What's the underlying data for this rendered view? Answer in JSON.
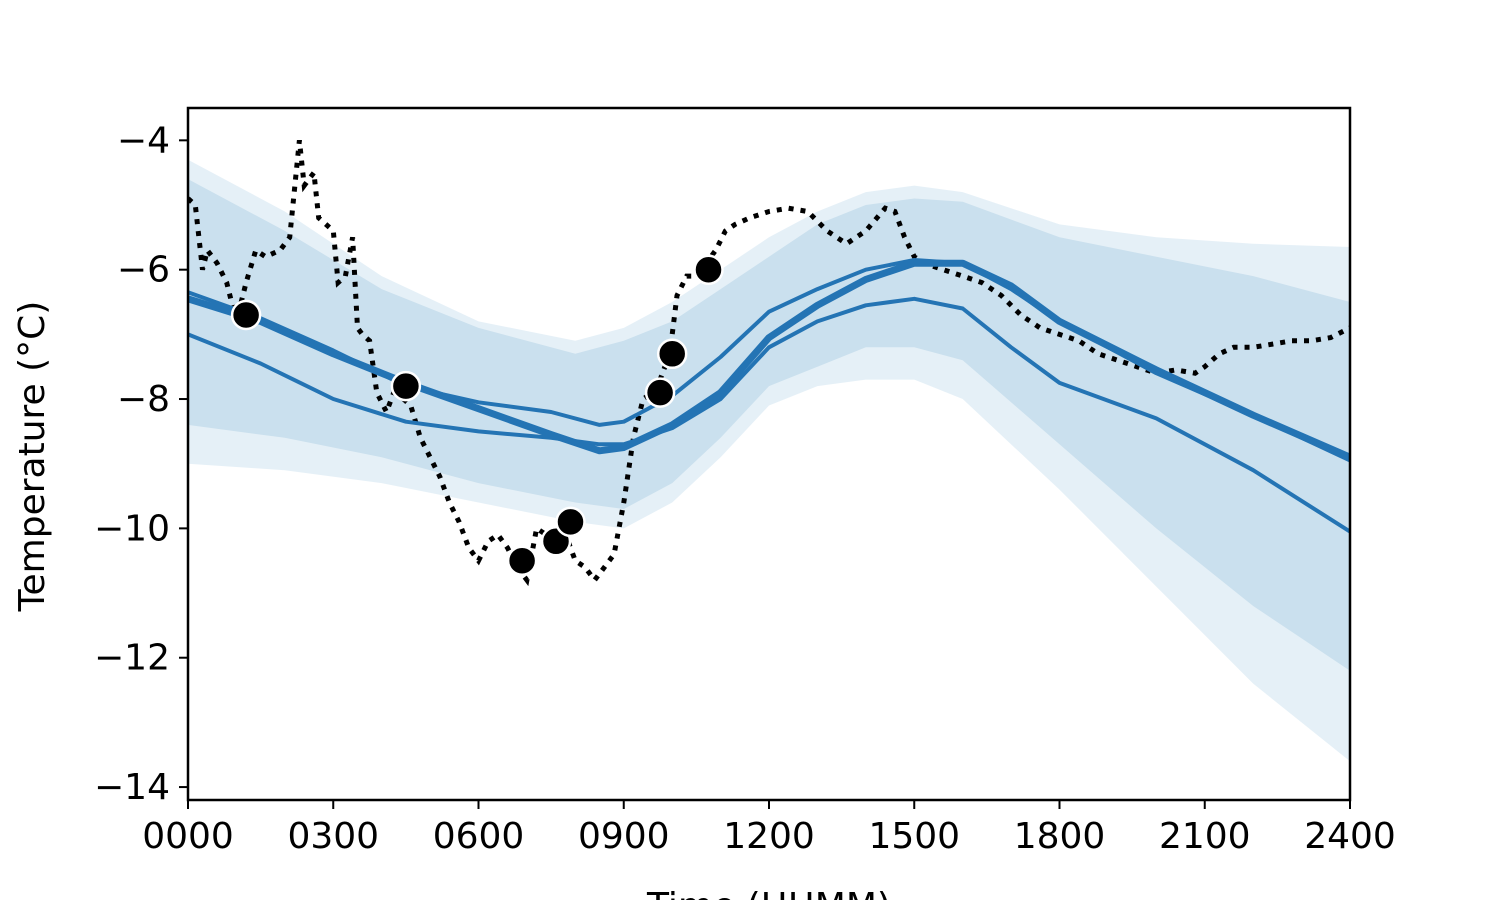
{
  "chart_data": {
    "type": "line",
    "xlabel": "Time (HHMM)",
    "ylabel": "Temperature (°C)",
    "xlim": [
      0,
      24
    ],
    "ylim": [
      -14.2,
      -3.5
    ],
    "x_ticks": [
      0,
      3,
      6,
      9,
      12,
      15,
      18,
      21,
      24
    ],
    "x_tick_labels": [
      "0000",
      "0300",
      "0600",
      "0900",
      "1200",
      "1500",
      "1800",
      "2100",
      "2400"
    ],
    "y_ticks": [
      -4,
      -6,
      -8,
      -10,
      -12,
      -14
    ],
    "y_tick_labels": [
      "−4",
      "−6",
      "−8",
      "−10",
      "−12",
      "−14"
    ],
    "grid": false,
    "legend": "none",
    "colors": {
      "line": "#2474b4",
      "band": "#a9cde3",
      "observed": "#000000"
    },
    "bands": [
      {
        "x": [
          0,
          2,
          4,
          6,
          8,
          9,
          10,
          11,
          12,
          13,
          14,
          15,
          16,
          18,
          20,
          22,
          24
        ],
        "upper": [
          -4.3,
          -5.1,
          -6.1,
          -6.8,
          -7.1,
          -6.9,
          -6.5,
          -6.0,
          -5.5,
          -5.1,
          -4.8,
          -4.7,
          -4.8,
          -5.3,
          -5.5,
          -5.6,
          -5.65
        ],
        "lower": [
          -9.0,
          -9.1,
          -9.3,
          -9.6,
          -9.9,
          -10.0,
          -9.6,
          -8.9,
          -8.1,
          -7.8,
          -7.7,
          -7.7,
          -8.0,
          -9.4,
          -10.9,
          -12.4,
          -13.6
        ]
      },
      {
        "x": [
          0,
          2,
          4,
          6,
          8,
          9,
          10,
          11,
          12,
          13,
          14,
          15,
          16,
          18,
          20,
          22,
          24
        ],
        "upper": [
          -4.6,
          -5.4,
          -6.3,
          -6.9,
          -7.3,
          -7.1,
          -6.8,
          -6.3,
          -5.8,
          -5.3,
          -5.0,
          -4.9,
          -4.95,
          -5.5,
          -5.8,
          -6.1,
          -6.5
        ],
        "lower": [
          -8.4,
          -8.6,
          -8.9,
          -9.3,
          -9.6,
          -9.7,
          -9.3,
          -8.6,
          -7.8,
          -7.5,
          -7.2,
          -7.2,
          -7.4,
          -8.7,
          -10.0,
          -11.2,
          -12.2
        ]
      }
    ],
    "series": [
      {
        "x": [
          0,
          1.5,
          3,
          4.5,
          6,
          7.5,
          8.5,
          9,
          10,
          11,
          12,
          13,
          14,
          15,
          16,
          17,
          18,
          20,
          22,
          24
        ],
        "y": [
          -6.45,
          -6.8,
          -7.3,
          -7.75,
          -8.15,
          -8.55,
          -8.8,
          -8.75,
          -8.4,
          -7.9,
          -7.05,
          -6.55,
          -6.15,
          -5.9,
          -5.9,
          -6.25,
          -6.8,
          -7.55,
          -8.25,
          -8.9
        ],
        "width": 7
      },
      {
        "x": [
          0,
          1.5,
          3,
          4.5,
          6,
          7.5,
          8.5,
          9,
          10,
          11,
          12,
          13,
          14,
          15,
          16,
          17,
          18,
          20,
          22,
          24
        ],
        "y": [
          -6.35,
          -6.75,
          -7.25,
          -7.8,
          -8.05,
          -8.2,
          -8.4,
          -8.35,
          -7.95,
          -7.35,
          -6.65,
          -6.3,
          -6.0,
          -5.85,
          -5.9,
          -6.3,
          -6.8,
          -7.6,
          -8.25,
          -8.95
        ],
        "width": 4
      },
      {
        "x": [
          0,
          1.5,
          3,
          4.5,
          6,
          7.5,
          8.5,
          9,
          10,
          11,
          12,
          13,
          14,
          15,
          16,
          17,
          18,
          20,
          22,
          24
        ],
        "y": [
          -7.0,
          -7.45,
          -8.0,
          -8.35,
          -8.5,
          -8.6,
          -8.7,
          -8.7,
          -8.45,
          -8.0,
          -7.2,
          -6.8,
          -6.55,
          -6.45,
          -6.6,
          -7.2,
          -7.75,
          -8.3,
          -9.1,
          -10.05
        ],
        "width": 4
      }
    ],
    "observed_line": {
      "style": "dotted",
      "x": [
        0,
        0.15,
        0.3,
        0.4,
        0.6,
        0.8,
        1.0,
        1.2,
        1.4,
        1.6,
        1.9,
        2.1,
        2.3,
        2.4,
        2.5,
        2.6,
        2.7,
        2.85,
        3.0,
        3.1,
        3.25,
        3.4,
        3.5,
        3.6,
        3.75,
        3.9,
        4.1,
        4.3,
        4.45,
        4.6,
        4.8,
        5.0,
        5.2,
        5.4,
        5.6,
        5.8,
        6.0,
        6.2,
        6.4,
        6.6,
        6.8,
        7.0,
        7.2,
        7.4,
        7.6,
        7.8,
        8.0,
        8.2,
        8.4,
        8.6,
        8.8,
        9.0,
        9.2,
        9.4,
        9.6,
        9.75,
        9.9,
        10.0,
        10.1,
        10.3,
        10.5,
        10.7,
        10.9,
        11.1,
        11.3,
        11.6,
        12.0,
        12.4,
        12.8,
        13.2,
        13.6,
        14.0,
        14.4,
        14.6,
        14.8,
        15.0,
        15.2,
        15.6,
        16.0,
        16.4,
        16.8,
        17.2,
        17.6,
        18.0,
        18.4,
        18.8,
        19.2,
        19.6,
        20.0,
        20.4,
        20.8,
        21.0,
        21.3,
        21.6,
        22.0,
        22.4,
        22.8,
        23.2,
        23.6,
        24.0
      ],
      "y": [
        -4.9,
        -5.0,
        -6.0,
        -5.7,
        -5.9,
        -6.2,
        -6.8,
        -6.2,
        -5.7,
        -5.8,
        -5.7,
        -5.5,
        -4.0,
        -4.7,
        -4.6,
        -4.5,
        -5.2,
        -5.3,
        -5.4,
        -6.2,
        -6.1,
        -5.5,
        -6.9,
        -7.0,
        -7.1,
        -7.9,
        -8.2,
        -7.8,
        -8.0,
        -8.1,
        -8.6,
        -8.9,
        -9.2,
        -9.6,
        -9.9,
        -10.3,
        -10.5,
        -10.2,
        -10.1,
        -10.3,
        -10.6,
        -10.8,
        -10.0,
        -10.1,
        -10.05,
        -10.1,
        -10.5,
        -10.6,
        -10.8,
        -10.6,
        -10.4,
        -9.6,
        -8.6,
        -8.0,
        -7.9,
        -7.7,
        -7.4,
        -7.0,
        -6.4,
        -6.1,
        -6.1,
        -5.9,
        -5.7,
        -5.4,
        -5.3,
        -5.2,
        -5.1,
        -5.05,
        -5.1,
        -5.4,
        -5.6,
        -5.4,
        -5.05,
        -5.1,
        -5.5,
        -5.8,
        -5.9,
        -6.0,
        -6.1,
        -6.2,
        -6.4,
        -6.7,
        -6.9,
        -7.0,
        -7.1,
        -7.3,
        -7.4,
        -7.5,
        -7.6,
        -7.55,
        -7.6,
        -7.5,
        -7.3,
        -7.2,
        -7.2,
        -7.15,
        -7.1,
        -7.1,
        -7.05,
        -6.9
      ]
    },
    "observed_points": {
      "x": [
        1.2,
        4.5,
        6.9,
        7.6,
        7.9,
        9.75,
        10.0,
        10.75
      ],
      "y": [
        -6.7,
        -7.8,
        -10.5,
        -10.2,
        -9.9,
        -7.9,
        -7.3,
        -6.0
      ]
    }
  }
}
